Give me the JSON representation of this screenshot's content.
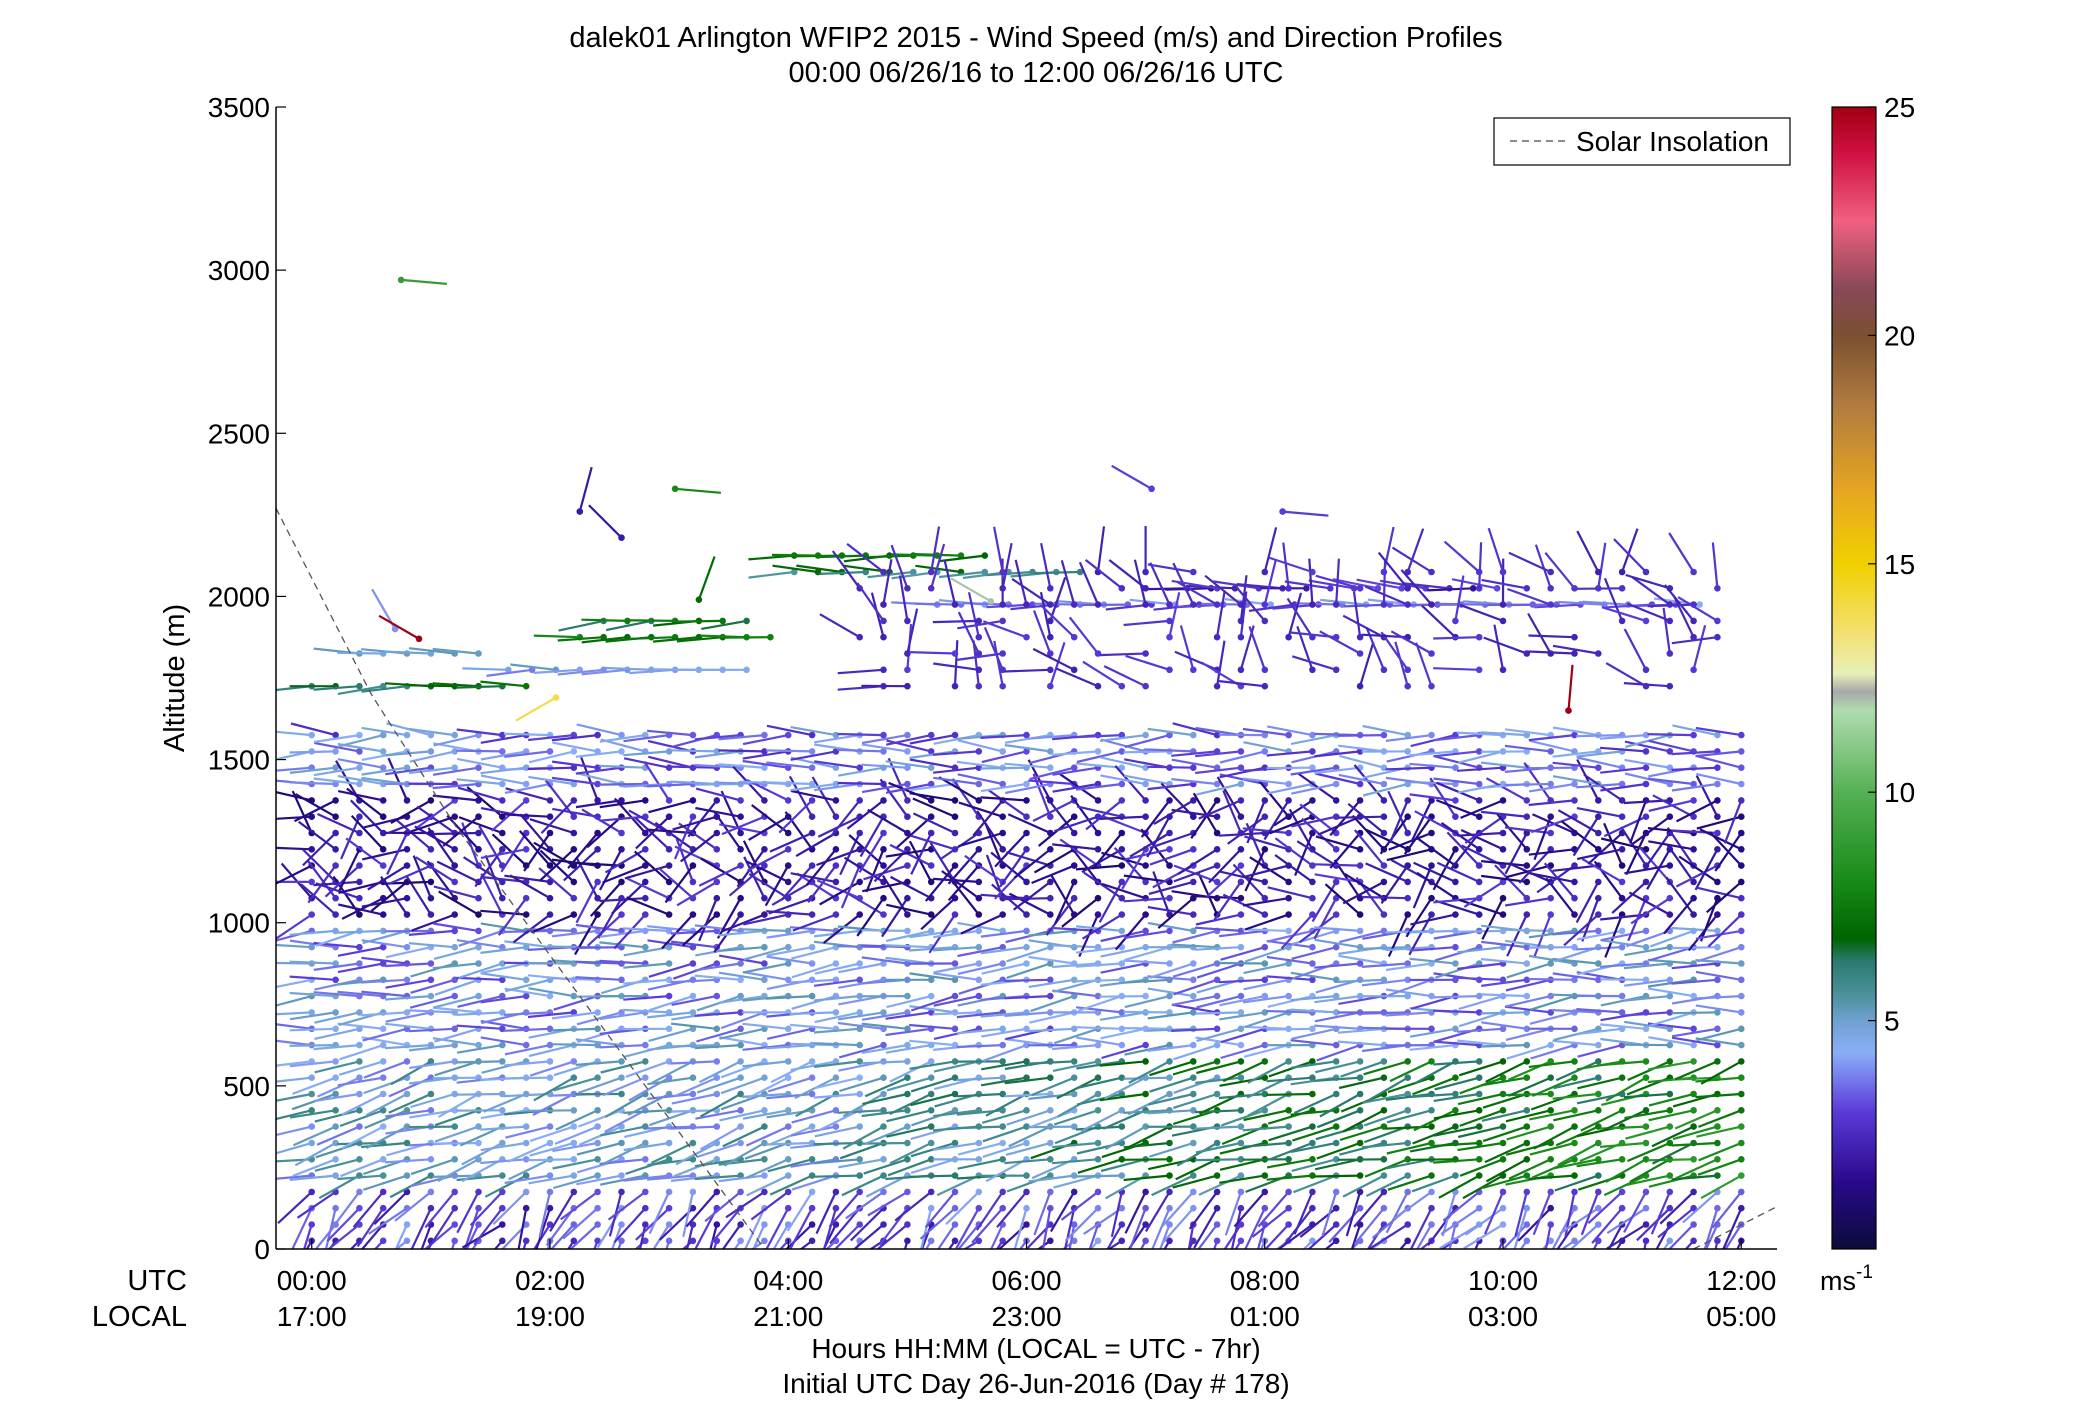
{
  "chart_data": {
    "type": "wind-barb profile",
    "title": "dalek01 Arlington WFIP2 2015 - Wind Speed (m/s) and Direction Profiles",
    "subtitle": "00:00 06/26/16 to 12:00 06/26/16  UTC",
    "ylabel": "Altitude (m)",
    "ylim": [
      0,
      3500
    ],
    "yticks": [
      "0",
      "500",
      "1000",
      "1500",
      "2000",
      "2500",
      "3000",
      "3500"
    ],
    "xlim_hours": [
      -0.3,
      12.3
    ],
    "x_row_labels": {
      "utc": "UTC",
      "local": "LOCAL"
    },
    "xticks_utc": [
      "00:00",
      "02:00",
      "04:00",
      "06:00",
      "08:00",
      "10:00",
      "12:00"
    ],
    "xticks_local": [
      "17:00",
      "19:00",
      "21:00",
      "23:00",
      "01:00",
      "03:00",
      "05:00"
    ],
    "xlabel_line1": "Hours HH:MM  (LOCAL = UTC - 7hr)",
    "xlabel_line2": "Initial UTC Day 26-Jun-2016 (Day # 178)",
    "legend": {
      "label": "Solar Insolation",
      "position": "top-right"
    },
    "colorbar": {
      "range": [
        0,
        25
      ],
      "ticks": [
        "5",
        "10",
        "15",
        "20",
        "25"
      ],
      "unit": "ms",
      "unit_exp": "-1",
      "stops": [
        {
          "v": 0,
          "c": "#0b0b3a"
        },
        {
          "v": 1.5,
          "c": "#2a0a8c"
        },
        {
          "v": 3,
          "c": "#5a3ad8"
        },
        {
          "v": 4.3,
          "c": "#8aaef8"
        },
        {
          "v": 5,
          "c": "#6fa0d0"
        },
        {
          "v": 5.6,
          "c": "#4a9098"
        },
        {
          "v": 6.3,
          "c": "#2a7a70"
        },
        {
          "v": 6.8,
          "c": "#006400"
        },
        {
          "v": 8,
          "c": "#168a16"
        },
        {
          "v": 10,
          "c": "#55b055"
        },
        {
          "v": 11.8,
          "c": "#b0dcb0"
        },
        {
          "v": 12.2,
          "c": "#a8a8a8"
        },
        {
          "v": 12.6,
          "c": "#e8f0b8"
        },
        {
          "v": 13.5,
          "c": "#f4e070"
        },
        {
          "v": 15,
          "c": "#f0d000"
        },
        {
          "v": 16.5,
          "c": "#e8a820"
        },
        {
          "v": 18.5,
          "c": "#b07a40"
        },
        {
          "v": 20,
          "c": "#7a5030"
        },
        {
          "v": 21,
          "c": "#884858"
        },
        {
          "v": 22.5,
          "c": "#f06080"
        },
        {
          "v": 24,
          "c": "#d01040"
        },
        {
          "v": 25,
          "c": "#a00014"
        }
      ]
    },
    "solar_insolation": [
      {
        "x": -0.3,
        "y": 2270
      },
      {
        "x": 0.5,
        "y": 1700
      },
      {
        "x": 1.2,
        "y": 1300
      },
      {
        "x": 2.0,
        "y": 900
      },
      {
        "x": 2.8,
        "y": 500
      },
      {
        "x": 3.4,
        "y": 200
      },
      {
        "x": 3.8,
        "y": 0
      }
    ],
    "solar_insolation_end": [
      {
        "x": 11.6,
        "y": 0
      },
      {
        "x": 12.3,
        "y": 130
      }
    ],
    "wind_field": {
      "t_start": 0.0,
      "t_end": 12.0,
      "t_step": 0.2,
      "z_start": 25,
      "z_end": 1575,
      "z_step": 50,
      "regime": [
        {
          "z_max": 200,
          "dir_deg": 200,
          "speed": 3.0
        },
        {
          "z_max": 600,
          "dir_deg": 255,
          "speed": 4.8
        },
        {
          "z_max": 1000,
          "dir_deg": 265,
          "speed": 4.2
        },
        {
          "z_max": 1400,
          "dir_deg": 265,
          "speed": 2.2
        },
        {
          "z_max": 1700,
          "dir_deg": 270,
          "speed": 3.8
        }
      ]
    },
    "upper_points": [
      {
        "t": 0.75,
        "z": 2970,
        "dir_deg": 95,
        "speed": 9
      },
      {
        "t": 2.25,
        "z": 2260,
        "dir_deg": 15,
        "speed": 2
      },
      {
        "t": 3.05,
        "z": 2330,
        "dir_deg": 95,
        "speed": 8
      },
      {
        "t": 3.25,
        "z": 1990,
        "dir_deg": 20,
        "speed": 7
      },
      {
        "t": 2.6,
        "z": 2180,
        "dir_deg": 315,
        "speed": 2
      },
      {
        "t": 7.05,
        "z": 2330,
        "dir_deg": 300,
        "speed": 3
      },
      {
        "t": 8.15,
        "z": 2260,
        "dir_deg": 95,
        "speed": 3
      },
      {
        "t": 0.7,
        "z": 1900,
        "dir_deg": 330,
        "speed": 4
      },
      {
        "t": 0.9,
        "z": 1870,
        "dir_deg": 300,
        "speed": 25
      },
      {
        "t": 10.55,
        "z": 1650,
        "dir_deg": 5,
        "speed": 25
      },
      {
        "t": 2.05,
        "z": 1690,
        "dir_deg": 240,
        "speed": 14
      },
      {
        "t": 5.7,
        "z": 1985,
        "dir_deg": 300,
        "speed": 12
      }
    ],
    "upper_rows": [
      {
        "z": 2125,
        "t0": 4.05,
        "t1": 5.75,
        "dir_deg": 270,
        "speed": 7.5
      },
      {
        "z": 2075,
        "t0": 4.05,
        "t1": 6.55,
        "dir_deg": 270,
        "speed": 6.2
      },
      {
        "z": 2025,
        "t0": 7.35,
        "t1": 10.05,
        "dir_deg": 275,
        "speed": 2.5
      },
      {
        "z": 1975,
        "t0": 5.25,
        "t1": 11.65,
        "dir_deg": 270,
        "speed": 3.5
      },
      {
        "z": 1925,
        "t0": 2.45,
        "t1": 3.65,
        "dir_deg": 265,
        "speed": 7
      },
      {
        "z": 1875,
        "t0": 2.25,
        "t1": 3.85,
        "dir_deg": 265,
        "speed": 7.2
      },
      {
        "z": 1825,
        "t0": 0.4,
        "t1": 1.4,
        "dir_deg": 270,
        "speed": 4.6
      },
      {
        "z": 1775,
        "t0": 1.65,
        "t1": 3.65,
        "dir_deg": 270,
        "speed": 4.5
      },
      {
        "z": 1725,
        "t0": 0.0,
        "t1": 1.85,
        "dir_deg": 268,
        "speed": 6.5
      }
    ],
    "upper_scatter": {
      "z0": 1725,
      "z1": 2075,
      "t0": 4.6,
      "t1": 11.9,
      "dir_deg": 320,
      "speed": 1.5
    }
  }
}
